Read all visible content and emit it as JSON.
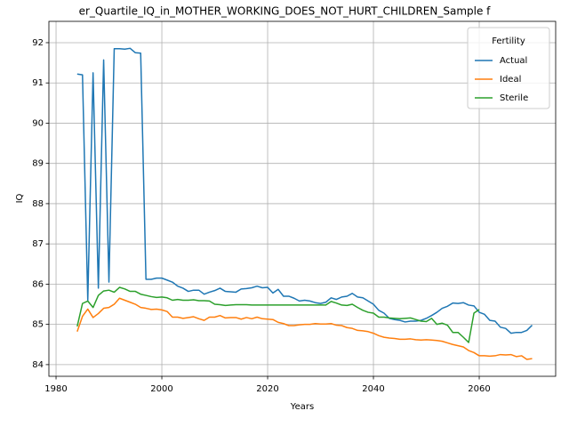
{
  "chart_data": {
    "type": "line",
    "title": "er_Quartile_IQ_in_MOTHER_WORKING_DOES_NOT_HURT_CHILDREN_Sample f",
    "x_label": "Years",
    "y_label": "IQ",
    "x": [
      1984,
      1985,
      1986,
      1987,
      1988,
      1989,
      1990,
      1991,
      1992,
      1993,
      1994,
      1995,
      1996,
      1997,
      1998,
      1999,
      2000,
      2001,
      2002,
      2003,
      2004,
      2005,
      2006,
      2007,
      2008,
      2009,
      2010,
      2011,
      2012,
      2013,
      2014,
      2015,
      2016,
      2017,
      2018,
      2019,
      2020,
      2021,
      2022,
      2023,
      2024,
      2025,
      2026,
      2027,
      2028,
      2029,
      2030,
      2031,
      2032,
      2033,
      2034,
      2035,
      2036,
      2037,
      2038,
      2039,
      2040,
      2041,
      2042,
      2043,
      2044,
      2045,
      2046,
      2047,
      2048,
      2049,
      2050,
      2051,
      2052,
      2053,
      2054,
      2055,
      2056,
      2057,
      2058,
      2059,
      2060,
      2061,
      2062,
      2063,
      2064,
      2065,
      2066,
      2067,
      2068,
      2069,
      2070
    ],
    "series": [
      {
        "name": "Actual",
        "color": "#1f77b4",
        "values": [
          91.22,
          91.2,
          85.6,
          91.25,
          85.9,
          91.57,
          86.05,
          91.85,
          91.85,
          91.84,
          91.86,
          91.75,
          91.74,
          86.12,
          86.12,
          86.15,
          86.15,
          86.1,
          86.05,
          85.95,
          85.9,
          85.82,
          85.85,
          85.85,
          85.75,
          85.8,
          85.84,
          85.9,
          85.82,
          85.81,
          85.8,
          85.88,
          85.89,
          85.91,
          85.95,
          85.91,
          85.92,
          85.78,
          85.87,
          85.7,
          85.7,
          85.65,
          85.58,
          85.6,
          85.58,
          85.54,
          85.52,
          85.55,
          85.66,
          85.62,
          85.68,
          85.7,
          85.77,
          85.68,
          85.66,
          85.58,
          85.5,
          85.35,
          85.28,
          85.15,
          85.12,
          85.1,
          85.06,
          85.08,
          85.08,
          85.1,
          85.15,
          85.22,
          85.3,
          85.4,
          85.45,
          85.53,
          85.52,
          85.54,
          85.48,
          85.46,
          85.3,
          85.25,
          85.1,
          85.08,
          84.93,
          84.9,
          84.78,
          84.8,
          84.8,
          84.85,
          84.98
        ]
      },
      {
        "name": "Ideal",
        "color": "#ff7f0e",
        "values": [
          84.82,
          85.2,
          85.38,
          85.17,
          85.27,
          85.4,
          85.42,
          85.5,
          85.65,
          85.6,
          85.55,
          85.5,
          85.42,
          85.4,
          85.37,
          85.38,
          85.36,
          85.32,
          85.18,
          85.18,
          85.15,
          85.17,
          85.19,
          85.14,
          85.1,
          85.18,
          85.18,
          85.22,
          85.16,
          85.17,
          85.17,
          85.13,
          85.17,
          85.14,
          85.18,
          85.14,
          85.13,
          85.12,
          85.05,
          85.02,
          84.97,
          84.97,
          84.99,
          85.0,
          85.0,
          85.02,
          85.01,
          85.01,
          85.02,
          84.98,
          84.97,
          84.92,
          84.9,
          84.85,
          84.84,
          84.82,
          84.78,
          84.72,
          84.68,
          84.66,
          84.65,
          84.63,
          84.63,
          84.64,
          84.62,
          84.61,
          84.62,
          84.61,
          84.6,
          84.58,
          84.54,
          84.5,
          84.47,
          84.44,
          84.35,
          84.3,
          84.22,
          84.22,
          84.21,
          84.22,
          84.25,
          84.24,
          84.25,
          84.2,
          84.22,
          84.13,
          84.15
        ]
      },
      {
        "name": "Sterile",
        "color": "#2ca02c",
        "values": [
          84.95,
          85.52,
          85.58,
          85.42,
          85.72,
          85.83,
          85.85,
          85.8,
          85.92,
          85.88,
          85.82,
          85.82,
          85.75,
          85.72,
          85.69,
          85.67,
          85.68,
          85.66,
          85.6,
          85.62,
          85.6,
          85.6,
          85.61,
          85.59,
          85.59,
          85.58,
          85.5,
          85.49,
          85.47,
          85.48,
          85.49,
          85.49,
          85.49,
          85.48,
          85.48,
          85.48,
          85.48,
          85.48,
          85.48,
          85.48,
          85.48,
          85.48,
          85.48,
          85.48,
          85.48,
          85.48,
          85.48,
          85.48,
          85.57,
          85.53,
          85.48,
          85.47,
          85.5,
          85.42,
          85.35,
          85.3,
          85.28,
          85.18,
          85.18,
          85.16,
          85.15,
          85.14,
          85.15,
          85.16,
          85.12,
          85.08,
          85.07,
          85.15,
          85.0,
          85.03,
          84.98,
          84.8,
          84.8,
          84.68,
          84.55,
          85.28,
          85.37,
          null,
          null,
          null,
          null,
          null,
          null,
          null,
          null,
          null,
          null
        ]
      }
    ],
    "xlim": [
      1978.65,
      2074.45
    ],
    "ylim": [
      83.71,
      92.53
    ],
    "xticks": [
      1980,
      2000,
      2020,
      2040,
      2060
    ],
    "yticks": [
      84,
      85,
      86,
      87,
      88,
      89,
      90,
      91,
      92
    ],
    "grid": true,
    "legend_title": "Fertility",
    "legend_loc": "upper right"
  }
}
